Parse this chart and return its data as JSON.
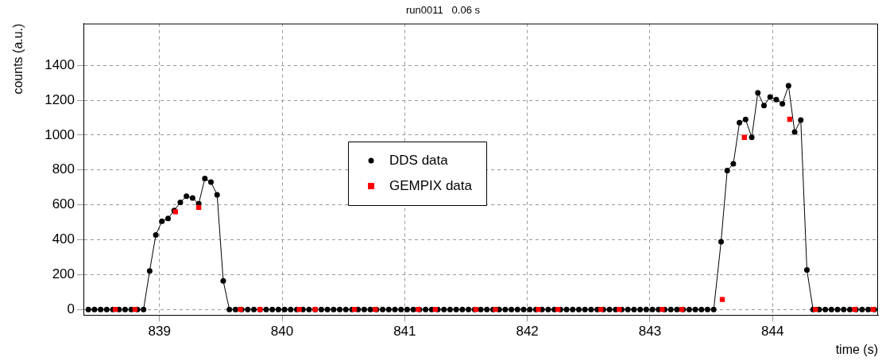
{
  "chart_data": {
    "type": "line",
    "title": "run0011   0.06 s",
    "xlabel": "time (s)",
    "ylabel": "counts (a.u.)",
    "xlim": [
      838.38,
      844.86
    ],
    "xticks": [
      839,
      840,
      841,
      842,
      843,
      844
    ],
    "ylim": [
      -33,
      1640
    ],
    "yticks": [
      0,
      200,
      400,
      600,
      800,
      1000,
      1200,
      1400
    ],
    "grid": true,
    "legend": "center",
    "series": [
      {
        "name": "DDS data",
        "type": "line",
        "color": "#000000",
        "marker": "circle",
        "line_style": "solid",
        "x": [
          838.42,
          838.47,
          838.52,
          838.57,
          838.62,
          838.67,
          838.72,
          838.77,
          838.82,
          838.87,
          838.92,
          838.97,
          839.02,
          839.07,
          839.12,
          839.17,
          839.22,
          839.27,
          839.32,
          839.37,
          839.42,
          839.47,
          839.52,
          839.57,
          839.62,
          839.67,
          839.72,
          839.77,
          839.82,
          839.87,
          839.92,
          839.97,
          840.02,
          840.07,
          840.12,
          840.17,
          840.22,
          840.27,
          840.32,
          840.37,
          840.42,
          840.47,
          840.52,
          840.57,
          840.62,
          840.67,
          840.72,
          840.77,
          840.82,
          840.87,
          840.92,
          840.97,
          841.02,
          841.07,
          841.12,
          841.17,
          841.22,
          841.27,
          841.32,
          841.37,
          841.42,
          841.47,
          841.52,
          841.57,
          841.62,
          841.67,
          841.72,
          841.77,
          841.82,
          841.87,
          841.92,
          841.97,
          842.02,
          842.07,
          842.12,
          842.17,
          842.22,
          842.27,
          842.32,
          842.37,
          842.42,
          842.47,
          842.52,
          842.57,
          842.62,
          842.67,
          842.72,
          842.77,
          842.82,
          842.87,
          842.92,
          842.97,
          843.02,
          843.07,
          843.12,
          843.17,
          843.22,
          843.27,
          843.32,
          843.37,
          843.42,
          843.47,
          843.52,
          843.58,
          843.63,
          843.68,
          843.73,
          843.78,
          843.83,
          843.88,
          843.93,
          843.98,
          844.03,
          844.08,
          844.13,
          844.18,
          844.23,
          844.28,
          844.33,
          844.38,
          844.43,
          844.48,
          844.53,
          844.58,
          844.63,
          844.68,
          844.73,
          844.78,
          844.83
        ],
        "values": [
          0,
          0,
          0,
          0,
          0,
          0,
          0,
          0,
          0,
          0,
          221,
          427,
          506,
          522,
          568,
          614,
          649,
          639,
          606,
          751,
          730,
          658,
          164,
          0,
          0,
          0,
          0,
          0,
          0,
          0,
          0,
          0,
          0,
          0,
          0,
          0,
          0,
          0,
          0,
          0,
          0,
          0,
          0,
          0,
          0,
          0,
          0,
          0,
          0,
          0,
          0,
          0,
          0,
          0,
          0,
          0,
          0,
          0,
          0,
          0,
          0,
          0,
          0,
          0,
          0,
          0,
          0,
          0,
          0,
          0,
          0,
          0,
          0,
          0,
          0,
          0,
          0,
          0,
          0,
          0,
          0,
          0,
          0,
          0,
          0,
          0,
          0,
          0,
          0,
          0,
          0,
          0,
          0,
          0,
          0,
          0,
          0,
          0,
          0,
          0,
          0,
          0,
          0,
          389,
          797,
          835,
          1071,
          1090,
          987,
          1243,
          1169,
          1219,
          1204,
          1180,
          1283,
          1018,
          1086,
          227,
          0,
          0,
          0,
          0,
          0,
          0,
          0,
          0,
          0,
          0,
          0
        ]
      },
      {
        "name": "GEMPIX data",
        "type": "scatter",
        "color": "#ff0000",
        "marker": "square",
        "x": [
          838.64,
          838.8,
          839.13,
          839.32,
          839.66,
          839.82,
          840.14,
          840.27,
          840.59,
          840.76,
          841.11,
          841.25,
          841.58,
          841.74,
          842.09,
          842.25,
          842.6,
          842.75,
          843.1,
          843.26,
          843.59,
          843.77,
          844.14,
          844.35,
          844.67,
          844.82
        ],
        "values": [
          0,
          0,
          560,
          585,
          0,
          0,
          0,
          0,
          0,
          0,
          0,
          0,
          0,
          0,
          0,
          0,
          0,
          0,
          0,
          0,
          57,
          987,
          1091,
          0,
          0,
          0
        ]
      }
    ]
  }
}
